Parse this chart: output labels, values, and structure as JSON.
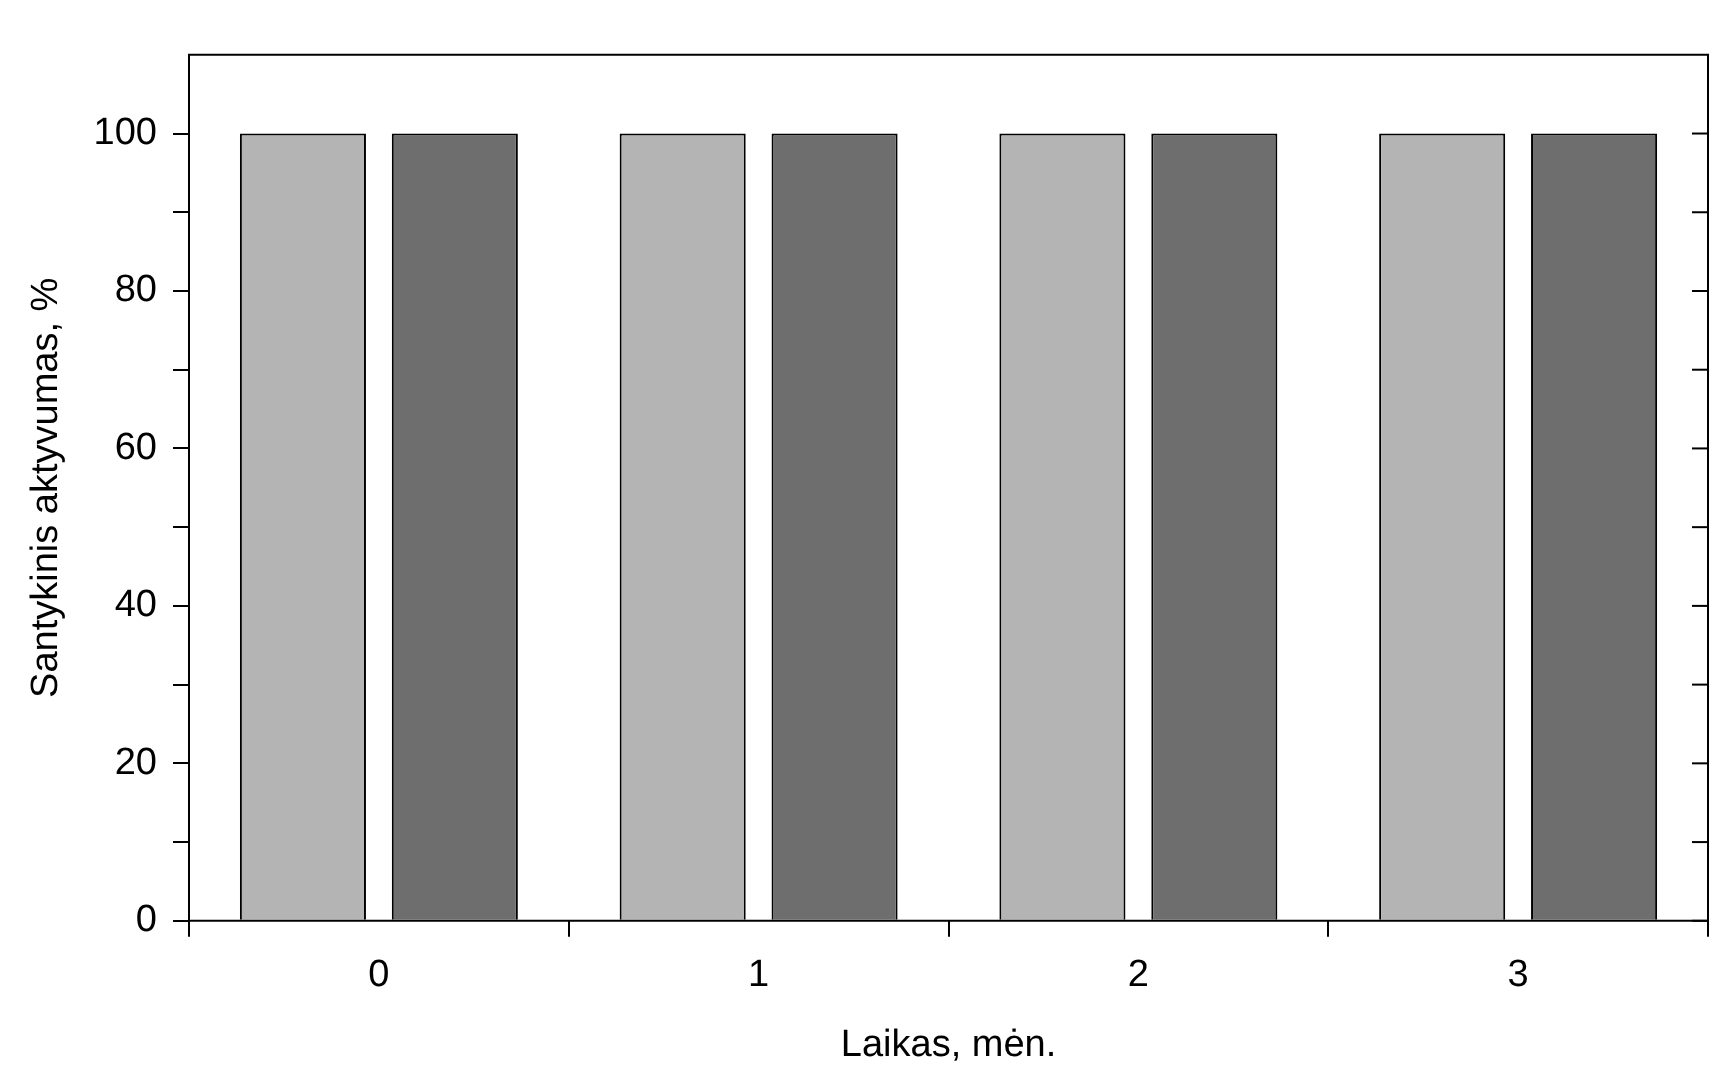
{
  "chart_data": {
    "type": "bar",
    "xlabel": "Laikas, mėn.",
    "ylabel": "Santykinis aktyvumas, %",
    "categories": [
      "0",
      "1",
      "2",
      "3"
    ],
    "series": [
      {
        "color": "#b4b4b4",
        "values": [
          100,
          100,
          100,
          100
        ]
      },
      {
        "color": "#6e6e6e",
        "values": [
          100,
          100,
          100,
          100
        ]
      }
    ],
    "ylim": [
      0,
      110
    ],
    "yticks": [
      0,
      {
        "value": 10,
        "label": null
      },
      20,
      {
        "value": 30,
        "label": null
      },
      40,
      {
        "value": 50,
        "label": null
      },
      60,
      {
        "value": 70,
        "label": null
      },
      80,
      {
        "value": 90,
        "label": null
      },
      100
    ],
    "grid": false,
    "legend": false
  }
}
